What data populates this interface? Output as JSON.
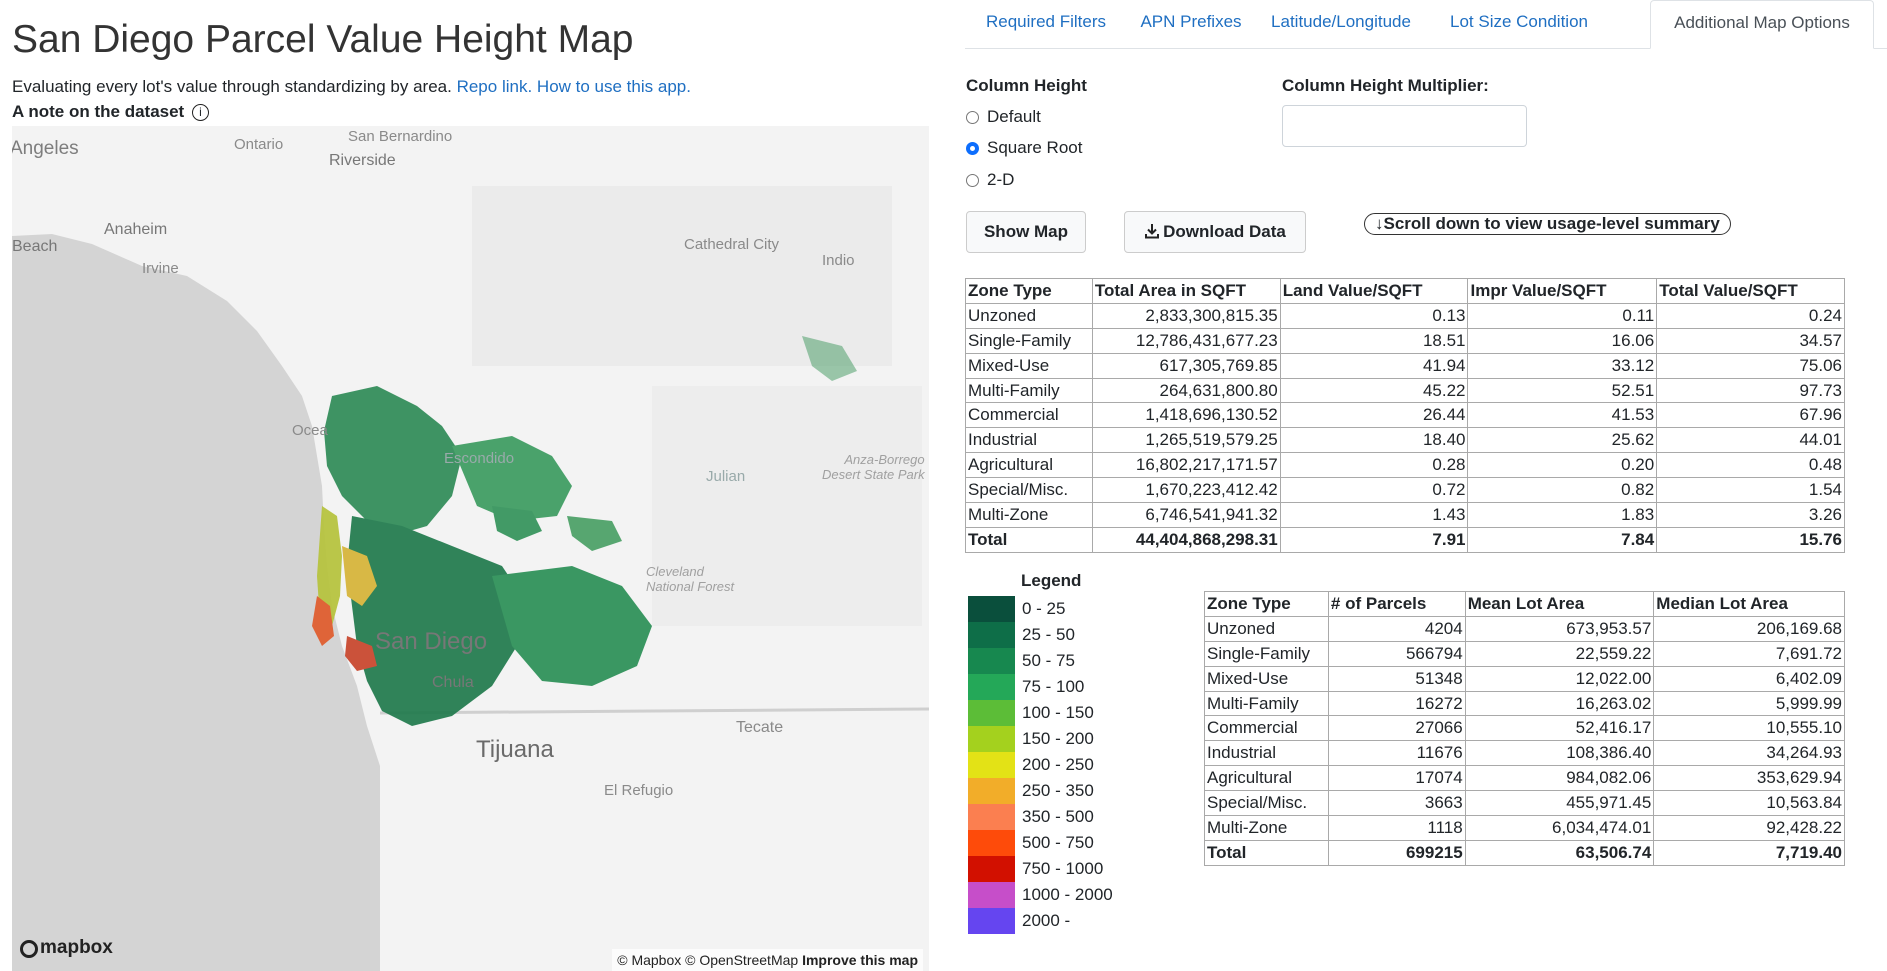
{
  "header": {
    "title": "San Diego Parcel Value Height Map",
    "subtitle": "Evaluating every lot's value through standardizing by area.",
    "repo_link": "Repo link.",
    "howto_link": "How to use this app.",
    "note": "A note on the dataset",
    "info_glyph": "i"
  },
  "tabs": [
    {
      "label": "Required Filters"
    },
    {
      "label": "APN Prefixes"
    },
    {
      "label": "Latitude/Longitude"
    },
    {
      "label": "Lot Size Condition"
    },
    {
      "label": "Additional Map Options",
      "active": true
    }
  ],
  "options": {
    "column_height_label": "Column Height",
    "radios": [
      {
        "label": "Default",
        "checked": false
      },
      {
        "label": "Square Root",
        "checked": true
      },
      {
        "label": "2-D",
        "checked": false
      }
    ],
    "multiplier_label": "Column Height Multiplier:",
    "multiplier_value": ""
  },
  "buttons": {
    "show_map": "Show Map",
    "download": "Download Data",
    "scroll_hint": "↓Scroll down to view usage-level summary"
  },
  "value_table": {
    "headers": [
      "Zone Type",
      "Total Area in SQFT",
      "Land Value/SQFT",
      "Impr Value/SQFT",
      "Total Value/SQFT"
    ],
    "rows": [
      [
        "Unzoned",
        "2,833,300,815.35",
        "0.13",
        "0.11",
        "0.24"
      ],
      [
        "Single-Family",
        "12,786,431,677.23",
        "18.51",
        "16.06",
        "34.57"
      ],
      [
        "Mixed-Use",
        "617,305,769.85",
        "41.94",
        "33.12",
        "75.06"
      ],
      [
        "Multi-Family",
        "264,631,800.80",
        "45.22",
        "52.51",
        "97.73"
      ],
      [
        "Commercial",
        "1,418,696,130.52",
        "26.44",
        "41.53",
        "67.96"
      ],
      [
        "Industrial",
        "1,265,519,579.25",
        "18.40",
        "25.62",
        "44.01"
      ],
      [
        "Agricultural",
        "16,802,217,171.57",
        "0.28",
        "0.20",
        "0.48"
      ],
      [
        "Special/Misc.",
        "1,670,223,412.42",
        "0.72",
        "0.82",
        "1.54"
      ],
      [
        "Multi-Zone",
        "6,746,541,941.32",
        "1.43",
        "1.83",
        "3.26"
      ],
      [
        "Total",
        "44,404,868,298.31",
        "7.91",
        "7.84",
        "15.76"
      ]
    ]
  },
  "parcel_table": {
    "headers": [
      "Zone Type",
      "# of Parcels",
      "Mean Lot Area",
      "Median Lot Area"
    ],
    "rows": [
      [
        "Unzoned",
        "4204",
        "673,953.57",
        "206,169.68"
      ],
      [
        "Single-Family",
        "566794",
        "22,559.22",
        "7,691.72"
      ],
      [
        "Mixed-Use",
        "51348",
        "12,022.00",
        "6,402.09"
      ],
      [
        "Multi-Family",
        "16272",
        "16,263.02",
        "5,999.99"
      ],
      [
        "Commercial",
        "27066",
        "52,416.17",
        "10,555.10"
      ],
      [
        "Industrial",
        "11676",
        "108,386.40",
        "34,264.93"
      ],
      [
        "Agricultural",
        "17074",
        "984,082.06",
        "353,629.94"
      ],
      [
        "Special/Misc.",
        "3663",
        "455,971.45",
        "10,563.84"
      ],
      [
        "Multi-Zone",
        "1118",
        "6,034,474.01",
        "92,428.22"
      ],
      [
        "Total",
        "699215",
        "63,506.74",
        "7,719.40"
      ]
    ]
  },
  "legend": {
    "title": "Legend",
    "items": [
      {
        "label": "0 - 25",
        "color": "#0a4f3c"
      },
      {
        "label": "25 - 50",
        "color": "#0e6e48"
      },
      {
        "label": "50 - 75",
        "color": "#17884f"
      },
      {
        "label": "75 - 100",
        "color": "#24a858"
      },
      {
        "label": "100 - 150",
        "color": "#5cbd37"
      },
      {
        "label": "150 - 200",
        "color": "#a4d11e"
      },
      {
        "label": "200 - 250",
        "color": "#e3e216"
      },
      {
        "label": "250 - 350",
        "color": "#f2ad29"
      },
      {
        "label": "350 - 500",
        "color": "#fb7f50"
      },
      {
        "label": "500 - 750",
        "color": "#fe4b0a"
      },
      {
        "label": "750 - 1000",
        "color": "#d21000"
      },
      {
        "label": "1000 - 2000",
        "color": "#c64ec9"
      },
      {
        "label": "2000 -",
        "color": "#6545f0"
      }
    ]
  },
  "map": {
    "labels": {
      "angeles": "Angeles",
      "ontario": "Ontario",
      "san_bernardino": "San Bernardino",
      "riverside": "Riverside",
      "anaheim": "Anaheim",
      "beach": "Beach",
      "irvine": "Irvine",
      "cathedral_city": "Cathedral City",
      "indio": "Indio",
      "oceanside": "Ocea",
      "escondido": "Escondido",
      "julian": "Julian",
      "anza_borrego_1": "Anza-Borrego",
      "anza_borrego_2": "Desert State Park",
      "cleveland_1": "Cleveland",
      "cleveland_2": "National Forest",
      "san_diego": "San Diego",
      "chula_vista": "Chula",
      "tijuana": "Tijuana",
      "tecate": "Tecate",
      "el_refugio": "El Refugio"
    },
    "logo": "mapbox",
    "attribution": {
      "mapbox": "© Mapbox",
      "osm": "© OpenStreetMap",
      "improve": "Improve this map"
    }
  }
}
